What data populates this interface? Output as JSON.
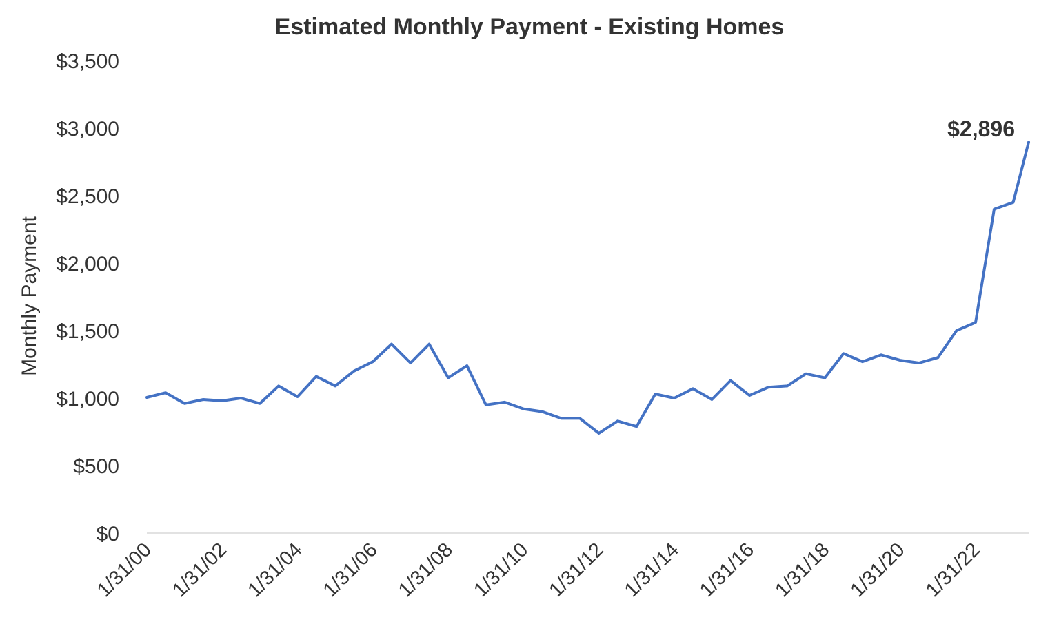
{
  "chart_data": {
    "type": "line",
    "title": "Estimated Monthly Payment - Existing Homes",
    "xlabel": "",
    "ylabel": "Monthly Payment",
    "ylim": [
      0,
      3500
    ],
    "y_ticks": [
      0,
      500,
      1000,
      1500,
      2000,
      2500,
      3000,
      3500
    ],
    "y_tick_labels": [
      "$0",
      "$500",
      "$1,000",
      "$1,500",
      "$2,000",
      "$2,500",
      "$3,000",
      "$3,500"
    ],
    "x_tick_labels": [
      "1/31/00",
      "1/31/02",
      "1/31/04",
      "1/31/06",
      "1/31/08",
      "1/31/10",
      "1/31/12",
      "1/31/14",
      "1/31/16",
      "1/31/18",
      "1/31/20",
      "1/31/22"
    ],
    "x_tick_dates": [
      "2000-01-31",
      "2002-01-31",
      "2004-01-31",
      "2006-01-31",
      "2008-01-31",
      "2010-01-31",
      "2012-01-31",
      "2014-01-31",
      "2016-01-31",
      "2018-01-31",
      "2020-01-31",
      "2022-01-31"
    ],
    "xlim": [
      "2000-01-31",
      "2023-06-30"
    ],
    "grid": false,
    "line_color": "#4472C4",
    "annotation": {
      "label": "$2,896",
      "x": "2023-06-30",
      "y": 2896
    },
    "series": [
      {
        "x": [
          "2000-01-31",
          "2000-07-31",
          "2001-01-31",
          "2001-07-31",
          "2002-01-31",
          "2002-07-31",
          "2003-01-31",
          "2003-07-31",
          "2004-01-31",
          "2004-07-31",
          "2005-01-31",
          "2005-07-31",
          "2006-01-31",
          "2006-07-31",
          "2007-01-31",
          "2007-07-31",
          "2008-01-31",
          "2008-07-31",
          "2009-01-31",
          "2009-07-31",
          "2010-01-31",
          "2010-07-31",
          "2011-01-31",
          "2011-07-31",
          "2012-01-31",
          "2012-07-31",
          "2013-01-31",
          "2013-07-31",
          "2014-01-31",
          "2014-07-31",
          "2015-01-31",
          "2015-07-31",
          "2016-01-31",
          "2016-07-31",
          "2017-01-31",
          "2017-07-31",
          "2018-01-31",
          "2018-07-31",
          "2019-01-31",
          "2019-07-31",
          "2020-01-31",
          "2020-07-31",
          "2021-01-31",
          "2021-07-31",
          "2022-01-31",
          "2022-07-31",
          "2023-01-31",
          "2023-06-30"
        ],
        "values": [
          1005,
          1040,
          960,
          990,
          980,
          1000,
          960,
          1090,
          1010,
          1160,
          1090,
          1200,
          1270,
          1400,
          1260,
          1400,
          1150,
          1240,
          950,
          970,
          920,
          900,
          850,
          850,
          740,
          830,
          790,
          1030,
          1000,
          1070,
          990,
          1130,
          1020,
          1080,
          1090,
          1180,
          1150,
          1330,
          1270,
          1320,
          1280,
          1260,
          1300,
          1500,
          1560,
          2400,
          2450,
          2896
        ]
      }
    ]
  }
}
